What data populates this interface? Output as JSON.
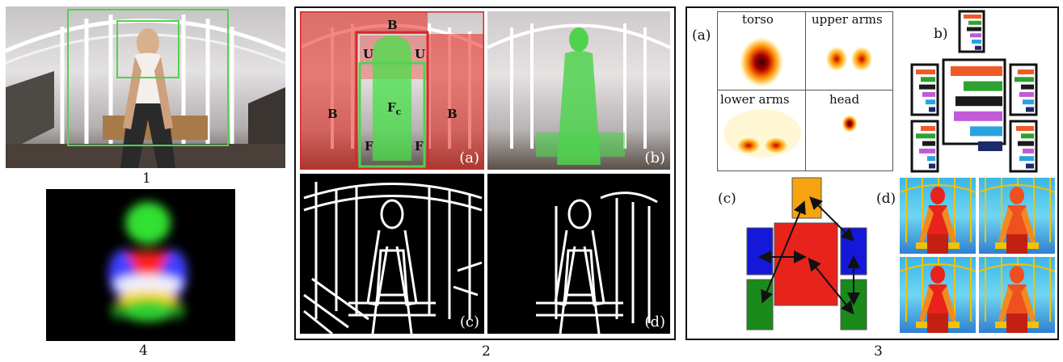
{
  "panels": {
    "p1": {
      "number": "1"
    },
    "p2": {
      "number": "2",
      "a": "(a)",
      "b": "(b)",
      "c": "(c)",
      "d": "(d)",
      "region_labels": {
        "background_left": "B",
        "background_top": "B",
        "background_right": "B",
        "upper_left": "U",
        "upper_right": "U",
        "foreground_center": "F",
        "foreground_center_sub": "c",
        "foreground_left": "F",
        "foreground_right": "F"
      }
    },
    "p3": {
      "number": "3",
      "a": "(a)",
      "b": "b)",
      "c": "(c)",
      "d": "(d)",
      "heatmaps": {
        "torso": "torso",
        "upper_arms": "upper arms",
        "lower_arms": "lower arms",
        "head": "head"
      }
    },
    "p4": {
      "number": "4"
    }
  },
  "colors": {
    "red": "#e8231c",
    "green": "#1a8a1a",
    "blue": "#1418d8",
    "orange": "#f5a40f",
    "box_green": "#4fd34f",
    "box_red": "#d42a2a"
  },
  "histogram_colors": [
    "#f05a28",
    "#2ea12e",
    "#1a1a1a",
    "#c25ad6",
    "#29a3e0",
    "#1b2a6b"
  ]
}
